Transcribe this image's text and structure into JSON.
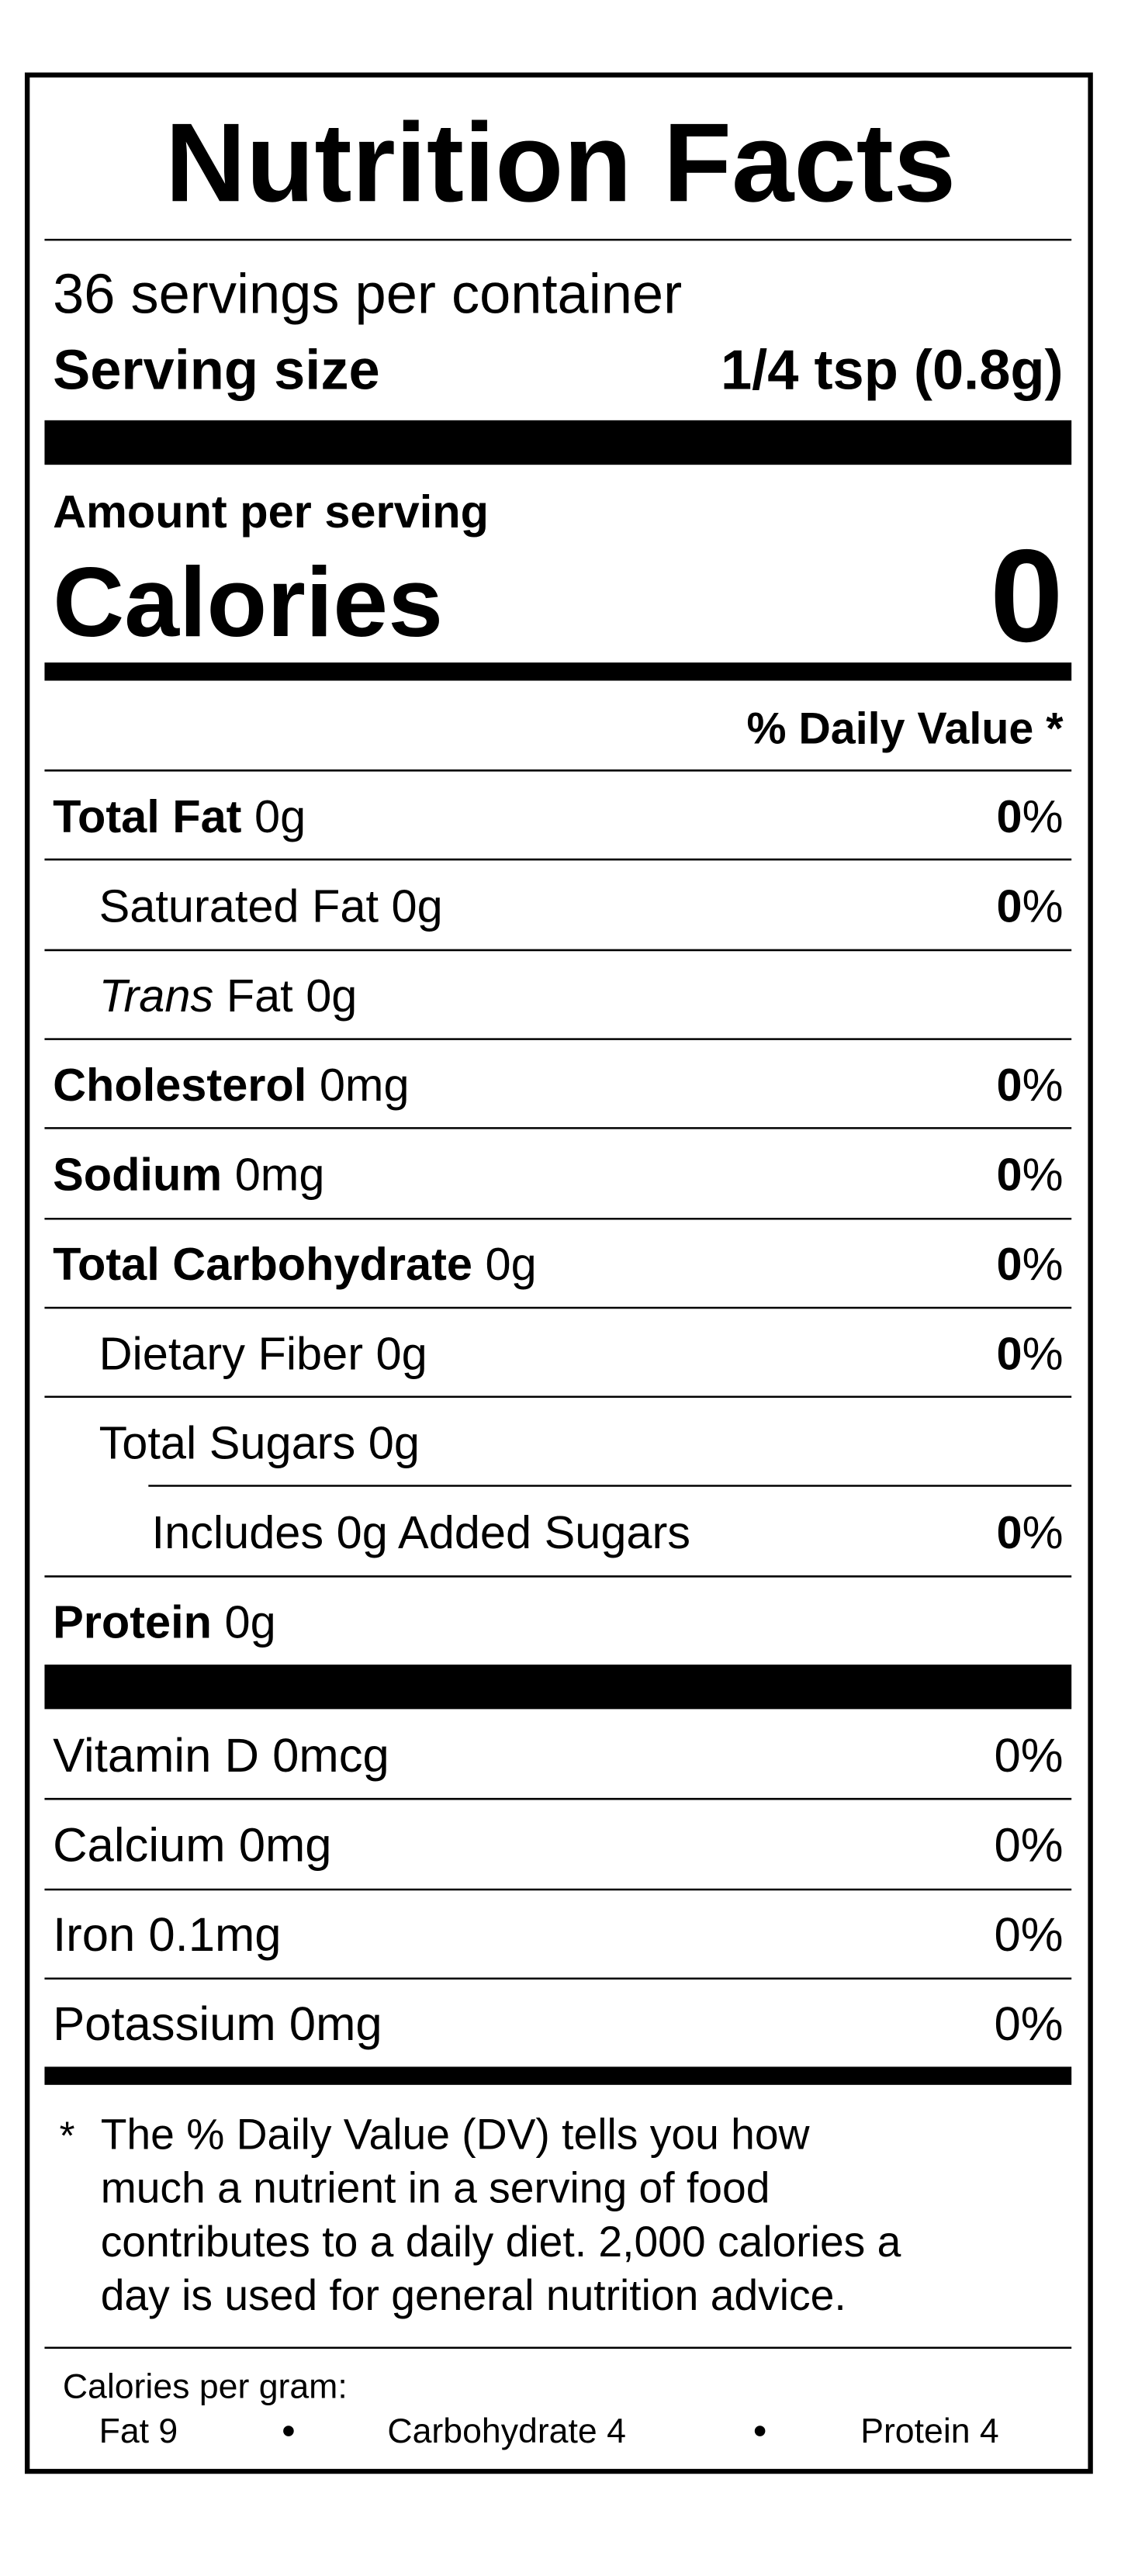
{
  "title": "Nutrition Facts",
  "servings": "36 servings per container",
  "serving_size": {
    "label": "Serving size",
    "value": "1/4 tsp (0.8g)"
  },
  "amount_per_serving": "Amount per serving",
  "calories": {
    "label": "Calories",
    "value": "0"
  },
  "daily_value_header": "% Daily Value *",
  "nutrients": [
    {
      "name": "Total Fat",
      "amount": "0g",
      "dv": "0",
      "sign": "%",
      "level": 0
    },
    {
      "name": "Saturated Fat",
      "amount": "0g",
      "dv": "0",
      "sign": "%",
      "level": 1
    },
    {
      "name_italic": "Trans",
      "name": "Fat",
      "amount": "0g",
      "level": 1
    },
    {
      "name": "Cholesterol",
      "amount": "0mg",
      "dv": "0",
      "sign": "%",
      "level": 0
    },
    {
      "name": "Sodium",
      "amount": "0mg",
      "dv": "0",
      "sign": "%",
      "level": 0
    },
    {
      "name": "Total Carbohydrate",
      "amount": "0g",
      "dv": "0",
      "sign": "%",
      "level": 0
    },
    {
      "name": "Dietary Fiber",
      "amount": "0g",
      "dv": "0",
      "sign": "%",
      "level": 1
    },
    {
      "name": "Total Sugars",
      "amount": "0g",
      "level": 1
    },
    {
      "name": "Includes 0g Added Sugars",
      "dv": "0",
      "sign": "%",
      "level": 2
    },
    {
      "name": "Protein",
      "amount": "0g",
      "level": 0
    }
  ],
  "vitamins": [
    {
      "name": "Vitamin D 0mcg",
      "dv": "0%"
    },
    {
      "name": "Calcium 0mg",
      "dv": "0%"
    },
    {
      "name": "Iron 0.1mg",
      "dv": "0%"
    },
    {
      "name": "Potassium 0mg",
      "dv": "0%"
    }
  ],
  "footnote": {
    "marker": "*",
    "lines": [
      "The % Daily Value (DV) tells you how",
      "much a nutrient in a serving of food",
      "contributes to a daily diet. 2,000 calories a",
      "day is used for general nutrition advice."
    ]
  },
  "calories_per_gram": {
    "label": "Calories per gram:",
    "items": [
      "Fat 9",
      "Carbohydrate 4",
      "Protein 4"
    ]
  }
}
